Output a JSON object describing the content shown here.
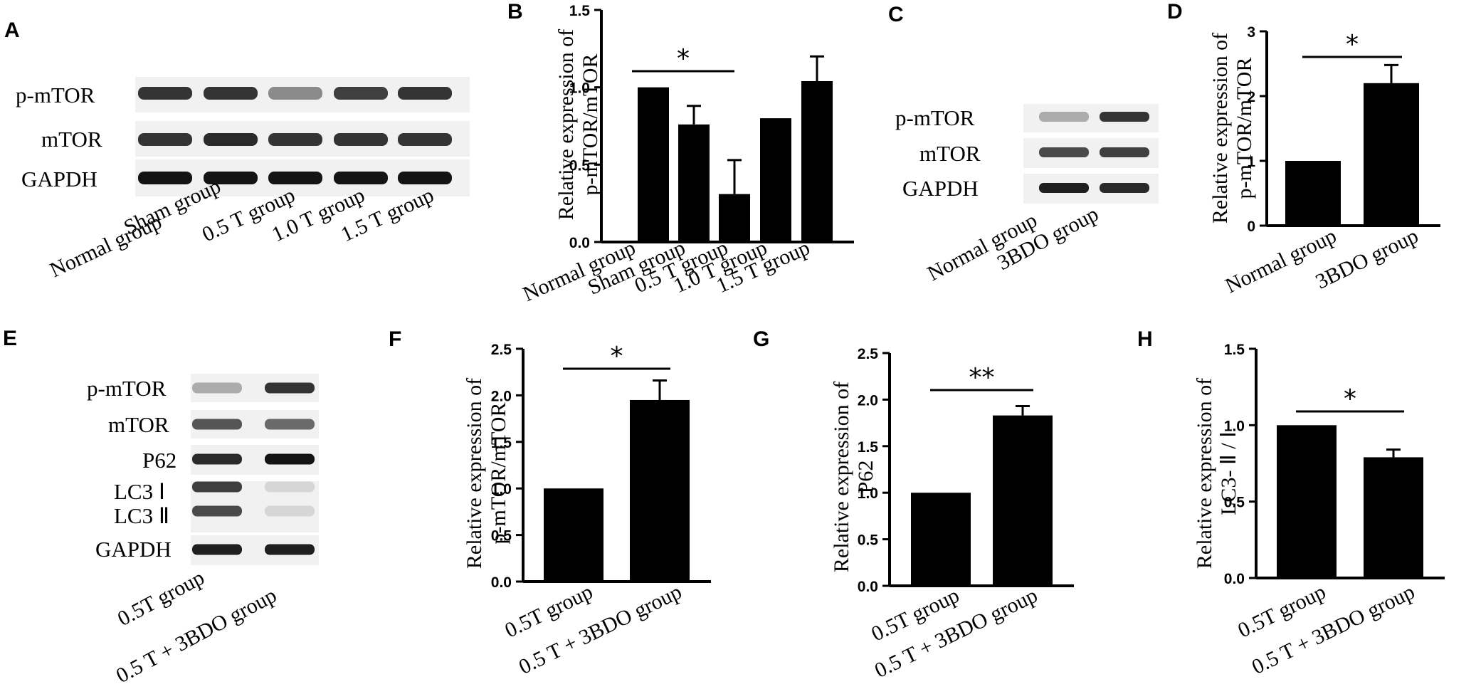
{
  "panels": {
    "A": {
      "letter": "A",
      "blot_rows": [
        "p-mTOR",
        "mTOR",
        "GAPDH"
      ],
      "lanes": [
        "Normal group",
        "Sham group",
        "0.5 T group",
        "1.0 T group",
        "1.5 T group"
      ],
      "band_intensity": [
        [
          0.85,
          0.85,
          0.45,
          0.8,
          0.85
        ],
        [
          0.85,
          0.9,
          0.85,
          0.85,
          0.85
        ],
        [
          1.0,
          1.0,
          1.0,
          1.0,
          1.0
        ]
      ]
    },
    "C": {
      "letter": "C",
      "blot_rows": [
        "p-mTOR",
        "mTOR",
        "GAPDH"
      ],
      "lanes": [
        "Normal group",
        "3BDO group"
      ],
      "band_intensity": [
        [
          0.3,
          0.85
        ],
        [
          0.75,
          0.8
        ],
        [
          0.95,
          0.9
        ]
      ]
    },
    "E": {
      "letter": "E",
      "blot_rows": [
        "p-mTOR",
        "mTOR",
        "P62",
        "LC3 Ⅰ",
        "LC3 Ⅱ",
        "GAPDH"
      ],
      "lanes": [
        "0.5T group",
        "0.5 T + 3BDO group"
      ],
      "band_intensity": [
        [
          0.3,
          0.85
        ],
        [
          0.7,
          0.6
        ],
        [
          0.9,
          1.0
        ],
        [
          0.8,
          0.1
        ],
        [
          0.75,
          0.1
        ],
        [
          0.95,
          0.95
        ]
      ]
    }
  },
  "chart_data": [
    {
      "panel": "B",
      "type": "bar",
      "ylabel": [
        "Relative expression of",
        "p-mTOR/mTOR"
      ],
      "categories": [
        "Normal group",
        "Sham group",
        "0.5 T group",
        "1.0 T group",
        "1.5 T group"
      ],
      "values": [
        1.0,
        0.76,
        0.31,
        0.8,
        1.04
      ],
      "errors": [
        0.0,
        0.12,
        0.22,
        0.0,
        0.16
      ],
      "ylim": [
        0,
        1.5
      ],
      "yticks": [
        "0.0",
        "0.5",
        "1.0",
        "1.5"
      ],
      "significance": [
        {
          "from": 0,
          "to": 2,
          "label": "*"
        }
      ]
    },
    {
      "panel": "D",
      "type": "bar",
      "ylabel": [
        "Relative expression of",
        "p-mTOR/mTOR"
      ],
      "categories": [
        "Normal group",
        "3BDO group"
      ],
      "values": [
        1.0,
        2.2
      ],
      "errors": [
        0.0,
        0.28
      ],
      "ylim": [
        0,
        3
      ],
      "yticks": [
        "0",
        "1",
        "2",
        "3"
      ],
      "significance": [
        {
          "from": 0,
          "to": 1,
          "label": "*"
        }
      ]
    },
    {
      "panel": "F",
      "type": "bar",
      "ylabel": [
        "Relative expression of",
        "p-mTOR/mTOR"
      ],
      "categories": [
        "0.5T group",
        "0.5 T + 3BDO group"
      ],
      "values": [
        1.0,
        1.95
      ],
      "errors": [
        0.0,
        0.21
      ],
      "ylim": [
        0,
        2.5
      ],
      "yticks": [
        "0.0",
        "0.5",
        "1.0",
        "1.5",
        "2.0",
        "2.5"
      ],
      "significance": [
        {
          "from": 0,
          "to": 1,
          "label": "*"
        }
      ]
    },
    {
      "panel": "G",
      "type": "bar",
      "ylabel": [
        "Relative expression of",
        "P62"
      ],
      "categories": [
        "0.5T group",
        "0.5 T + 3BDO group"
      ],
      "values": [
        1.0,
        1.83
      ],
      "errors": [
        0.0,
        0.1
      ],
      "ylim": [
        0,
        2.5
      ],
      "yticks": [
        "0.0",
        "0.5",
        "1.0",
        "1.5",
        "2.0",
        "2.5"
      ],
      "significance": [
        {
          "from": 0,
          "to": 1,
          "label": "**"
        }
      ]
    },
    {
      "panel": "H",
      "type": "bar",
      "ylabel": [
        "Relative expression of",
        "LC3- Ⅱ / Ⅰ"
      ],
      "categories": [
        "0.5T group",
        "0.5 T + 3BDO group"
      ],
      "values": [
        1.0,
        0.79
      ],
      "errors": [
        0.0,
        0.05
      ],
      "ylim": [
        0,
        1.5
      ],
      "yticks": [
        "0.0",
        "0.5",
        "1.0",
        "1.5"
      ],
      "significance": [
        {
          "from": 0,
          "to": 1,
          "label": "*"
        }
      ]
    }
  ]
}
